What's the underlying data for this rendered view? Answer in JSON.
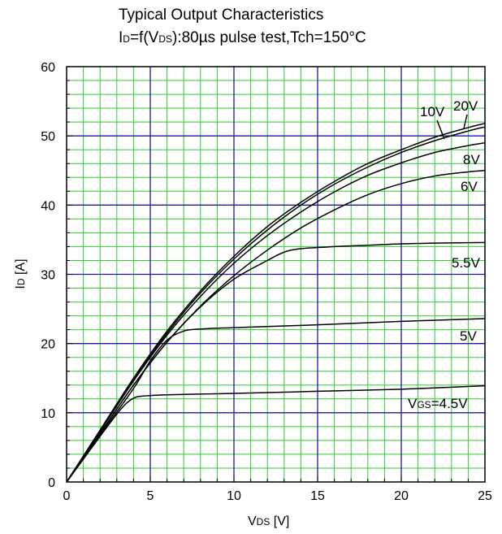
{
  "chart_data": {
    "type": "line",
    "title_line1": "Typical Output Characteristics",
    "title_line2": {
      "main": "I",
      "sub": "D",
      "rest": "=f(V",
      "sub2": "DS",
      "tail": "):80µs pulse test,Tch=150°C"
    },
    "xlabel": {
      "main": "V",
      "sub": "DS",
      "tail": " [V]"
    },
    "ylabel": {
      "main": "I",
      "sub": "D",
      "tail": " [A]"
    },
    "xlim": [
      0,
      25
    ],
    "ylim": [
      0,
      60
    ],
    "x_ticks": [
      "0",
      "5",
      "10",
      "15",
      "20",
      "25"
    ],
    "y_ticks": [
      "0",
      "10",
      "20",
      "30",
      "40",
      "50",
      "60"
    ],
    "grid": true,
    "series": [
      {
        "name": "20V",
        "points": [
          [
            0,
            0
          ],
          [
            2,
            7.5
          ],
          [
            4,
            15
          ],
          [
            6,
            21.8
          ],
          [
            8,
            27.6
          ],
          [
            10,
            32.6
          ],
          [
            12,
            36.9
          ],
          [
            14,
            40.4
          ],
          [
            16,
            43.4
          ],
          [
            18,
            46
          ],
          [
            20,
            48
          ],
          [
            22,
            49.8
          ],
          [
            24,
            51.2
          ],
          [
            25,
            51.8
          ]
        ]
      },
      {
        "name": "10V",
        "points": [
          [
            0,
            0
          ],
          [
            2,
            7.4
          ],
          [
            4,
            14.8
          ],
          [
            6,
            21.5
          ],
          [
            8,
            27.3
          ],
          [
            10,
            32.2
          ],
          [
            12,
            36.4
          ],
          [
            14,
            40
          ],
          [
            16,
            43
          ],
          [
            18,
            45.5
          ],
          [
            20,
            47.6
          ],
          [
            22,
            49.3
          ],
          [
            24,
            50.7
          ],
          [
            25,
            51.3
          ]
        ]
      },
      {
        "name": "8V",
        "points": [
          [
            0,
            0
          ],
          [
            2,
            7.3
          ],
          [
            4,
            14.6
          ],
          [
            6,
            21.2
          ],
          [
            8,
            26.8
          ],
          [
            10,
            31.6
          ],
          [
            12,
            35.6
          ],
          [
            14,
            39
          ],
          [
            16,
            41.9
          ],
          [
            18,
            44.3
          ],
          [
            20,
            46.1
          ],
          [
            22,
            47.6
          ],
          [
            24,
            48.6
          ],
          [
            25,
            49
          ]
        ]
      },
      {
        "name": "6V",
        "points": [
          [
            0,
            0
          ],
          [
            2,
            7
          ],
          [
            4,
            14
          ],
          [
            6,
            20.2
          ],
          [
            8,
            25.4
          ],
          [
            10,
            29.8
          ],
          [
            12,
            33.5
          ],
          [
            14,
            36.7
          ],
          [
            16,
            39.3
          ],
          [
            18,
            41.5
          ],
          [
            20,
            43.1
          ],
          [
            22,
            44.2
          ],
          [
            24,
            44.8
          ],
          [
            25,
            45
          ]
        ]
      },
      {
        "name": "5.5V",
        "points": [
          [
            0,
            0
          ],
          [
            2,
            7
          ],
          [
            4,
            14
          ],
          [
            6,
            20.2
          ],
          [
            8,
            25.3
          ],
          [
            10,
            29.3
          ],
          [
            12,
            32
          ],
          [
            13,
            33.2
          ],
          [
            14,
            33.7
          ],
          [
            16,
            34
          ],
          [
            18,
            34.2
          ],
          [
            20,
            34.4
          ],
          [
            22,
            34.5
          ],
          [
            25,
            34.6
          ]
        ]
      },
      {
        "name": "5V",
        "points": [
          [
            0,
            0
          ],
          [
            2,
            6.8
          ],
          [
            4,
            13.5
          ],
          [
            5,
            17.5
          ],
          [
            6,
            20.5
          ],
          [
            7,
            21.8
          ],
          [
            8,
            22.1
          ],
          [
            10,
            22.3
          ],
          [
            15,
            22.7
          ],
          [
            20,
            23.2
          ],
          [
            25,
            23.6
          ]
        ]
      },
      {
        "name": "VGS=4.5V",
        "points": [
          [
            0,
            0
          ],
          [
            1,
            3.3
          ],
          [
            2,
            6.6
          ],
          [
            3,
            9.8
          ],
          [
            3.5,
            11.2
          ],
          [
            4,
            12.1
          ],
          [
            4.5,
            12.4
          ],
          [
            6,
            12.6
          ],
          [
            10,
            12.8
          ],
          [
            15,
            13.1
          ],
          [
            20,
            13.4
          ],
          [
            25,
            13.9
          ]
        ]
      }
    ],
    "curve_labels": [
      {
        "series": "20V",
        "text": "20V"
      },
      {
        "series": "10V",
        "text": "10V"
      },
      {
        "series": "8V",
        "text": "8V"
      },
      {
        "series": "6V",
        "text": "6V"
      },
      {
        "series": "5.5V",
        "text": "5.5V"
      },
      {
        "series": "5V",
        "text": "5V"
      },
      {
        "series": "VGS=4.5V",
        "text_main": "V",
        "text_sub": "GS",
        "text_tail": "=4.5V"
      }
    ],
    "colors": {
      "minor_grid": "#33cc33",
      "major_grid": "#1a1aa0",
      "curve": "#000000",
      "frame": "#000000"
    }
  }
}
